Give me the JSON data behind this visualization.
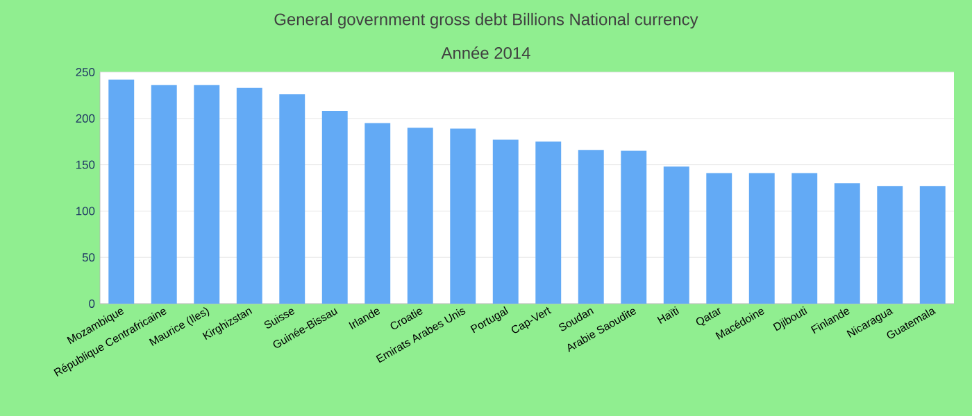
{
  "chart_data": {
    "type": "bar",
    "title": "General government gross debt Billions National currency",
    "subtitle": "Année 2014",
    "categories": [
      "Mozambique",
      "République Centrafricaine",
      "Maurice (Iles)",
      "Kirghizstan",
      "Suisse",
      "Guinée-Bissau",
      "Irlande",
      "Croatie",
      "Emirats Arabes Unis",
      "Portugal",
      "Cap-Vert",
      "Soudan",
      "Arabie Saoudite",
      "Haïti",
      "Qatar",
      "Macédoine",
      "Djibouti",
      "Finlande",
      "Nicaragua",
      "Guatemala"
    ],
    "values": [
      242,
      236,
      236,
      233,
      226,
      208,
      195,
      190,
      189,
      177,
      175,
      166,
      165,
      148,
      141,
      141,
      141,
      130,
      127,
      127
    ],
    "color": "#63aaf5",
    "ylim": [
      0,
      250
    ],
    "yticks": [
      0,
      50,
      100,
      150,
      200,
      250
    ],
    "grid": "y"
  }
}
